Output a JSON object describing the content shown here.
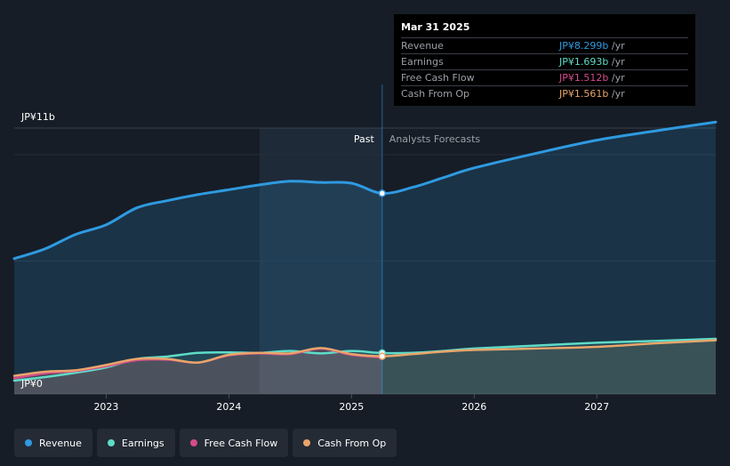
{
  "colors": {
    "background": "#161d27",
    "revenue": "#2f9ae0",
    "earnings": "#5fdcc8",
    "free_cash_flow": "#d44c8c",
    "cash_from_op": "#e8a56a"
  },
  "past_label": "Past",
  "forecast_label": "Analysts Forecasts",
  "tooltip": {
    "date": "Mar 31 2025",
    "rows": [
      {
        "label": "Revenue",
        "value": "JP¥8.299b",
        "unit": "/yr",
        "color": "#2f9ae0"
      },
      {
        "label": "Earnings",
        "value": "JP¥1.693b",
        "unit": "/yr",
        "color": "#5fdcc8"
      },
      {
        "label": "Free Cash Flow",
        "value": "JP¥1.512b",
        "unit": "/yr",
        "color": "#d44c8c"
      },
      {
        "label": "Cash From Op",
        "value": "JP¥1.561b",
        "unit": "/yr",
        "color": "#e8a56a"
      }
    ]
  },
  "legend": [
    {
      "label": "Revenue",
      "color": "#2f9ae0"
    },
    {
      "label": "Earnings",
      "color": "#5fdcc8"
    },
    {
      "label": "Free Cash Flow",
      "color": "#d44c8c"
    },
    {
      "label": "Cash From Op",
      "color": "#e8a56a"
    }
  ],
  "chart_data": {
    "type": "area",
    "y_tick_labels": [
      "JP¥11b",
      "JP¥0"
    ],
    "ylim": [
      0,
      11
    ],
    "xlim": [
      2022.25,
      2027.97
    ],
    "x_tick_labels": [
      "2023",
      "2024",
      "2025",
      "2026",
      "2027"
    ],
    "x_ticks": [
      2023,
      2024,
      2025,
      2026,
      2027
    ],
    "past_start": 2024.25,
    "divider": 2025.25,
    "grid": true,
    "series": [
      {
        "name": "Revenue",
        "key": "revenue",
        "points": [
          [
            2022.25,
            5.6
          ],
          [
            2022.5,
            6.0
          ],
          [
            2022.75,
            6.6
          ],
          [
            2023.0,
            7.0
          ],
          [
            2023.25,
            7.7
          ],
          [
            2023.5,
            8.0
          ],
          [
            2023.75,
            8.25
          ],
          [
            2024.0,
            8.45
          ],
          [
            2024.25,
            8.65
          ],
          [
            2024.5,
            8.8
          ],
          [
            2024.75,
            8.75
          ],
          [
            2025.0,
            8.72
          ],
          [
            2025.25,
            8.299
          ],
          [
            2025.5,
            8.55
          ],
          [
            2025.75,
            8.95
          ],
          [
            2026.0,
            9.35
          ],
          [
            2026.5,
            9.95
          ],
          [
            2027.0,
            10.5
          ],
          [
            2027.5,
            10.9
          ],
          [
            2027.97,
            11.25
          ]
        ]
      },
      {
        "name": "Earnings",
        "key": "earnings",
        "points": [
          [
            2022.25,
            0.55
          ],
          [
            2022.5,
            0.7
          ],
          [
            2022.75,
            0.88
          ],
          [
            2023.0,
            1.1
          ],
          [
            2023.25,
            1.45
          ],
          [
            2023.5,
            1.55
          ],
          [
            2023.75,
            1.7
          ],
          [
            2024.0,
            1.72
          ],
          [
            2024.25,
            1.7
          ],
          [
            2024.5,
            1.78
          ],
          [
            2024.75,
            1.68
          ],
          [
            2025.0,
            1.78
          ],
          [
            2025.25,
            1.693
          ],
          [
            2025.5,
            1.7
          ],
          [
            2025.75,
            1.78
          ],
          [
            2026.0,
            1.88
          ],
          [
            2026.5,
            2.0
          ],
          [
            2027.0,
            2.12
          ],
          [
            2027.5,
            2.2
          ],
          [
            2027.97,
            2.28
          ]
        ]
      },
      {
        "name": "Free Cash Flow",
        "key": "fcf",
        "points": [
          [
            2022.25,
            0.65
          ],
          [
            2022.5,
            0.85
          ],
          [
            2022.75,
            0.95
          ],
          [
            2023.0,
            1.15
          ],
          [
            2023.25,
            1.4
          ],
          [
            2023.5,
            1.42
          ],
          [
            2023.75,
            1.3
          ],
          [
            2024.0,
            1.6
          ],
          [
            2024.25,
            1.68
          ],
          [
            2024.5,
            1.65
          ],
          [
            2024.75,
            1.88
          ],
          [
            2025.0,
            1.62
          ],
          [
            2025.25,
            1.512
          ]
        ]
      },
      {
        "name": "Cash From Op",
        "key": "cfo",
        "points": [
          [
            2022.25,
            0.75
          ],
          [
            2022.5,
            0.92
          ],
          [
            2022.75,
            0.98
          ],
          [
            2023.0,
            1.2
          ],
          [
            2023.25,
            1.45
          ],
          [
            2023.5,
            1.45
          ],
          [
            2023.75,
            1.3
          ],
          [
            2024.0,
            1.62
          ],
          [
            2024.25,
            1.7
          ],
          [
            2024.5,
            1.68
          ],
          [
            2024.75,
            1.9
          ],
          [
            2025.0,
            1.65
          ],
          [
            2025.25,
            1.561
          ],
          [
            2025.5,
            1.65
          ],
          [
            2025.75,
            1.75
          ],
          [
            2026.0,
            1.82
          ],
          [
            2026.5,
            1.88
          ],
          [
            2027.0,
            1.95
          ],
          [
            2027.5,
            2.1
          ],
          [
            2027.97,
            2.22
          ]
        ]
      }
    ]
  }
}
